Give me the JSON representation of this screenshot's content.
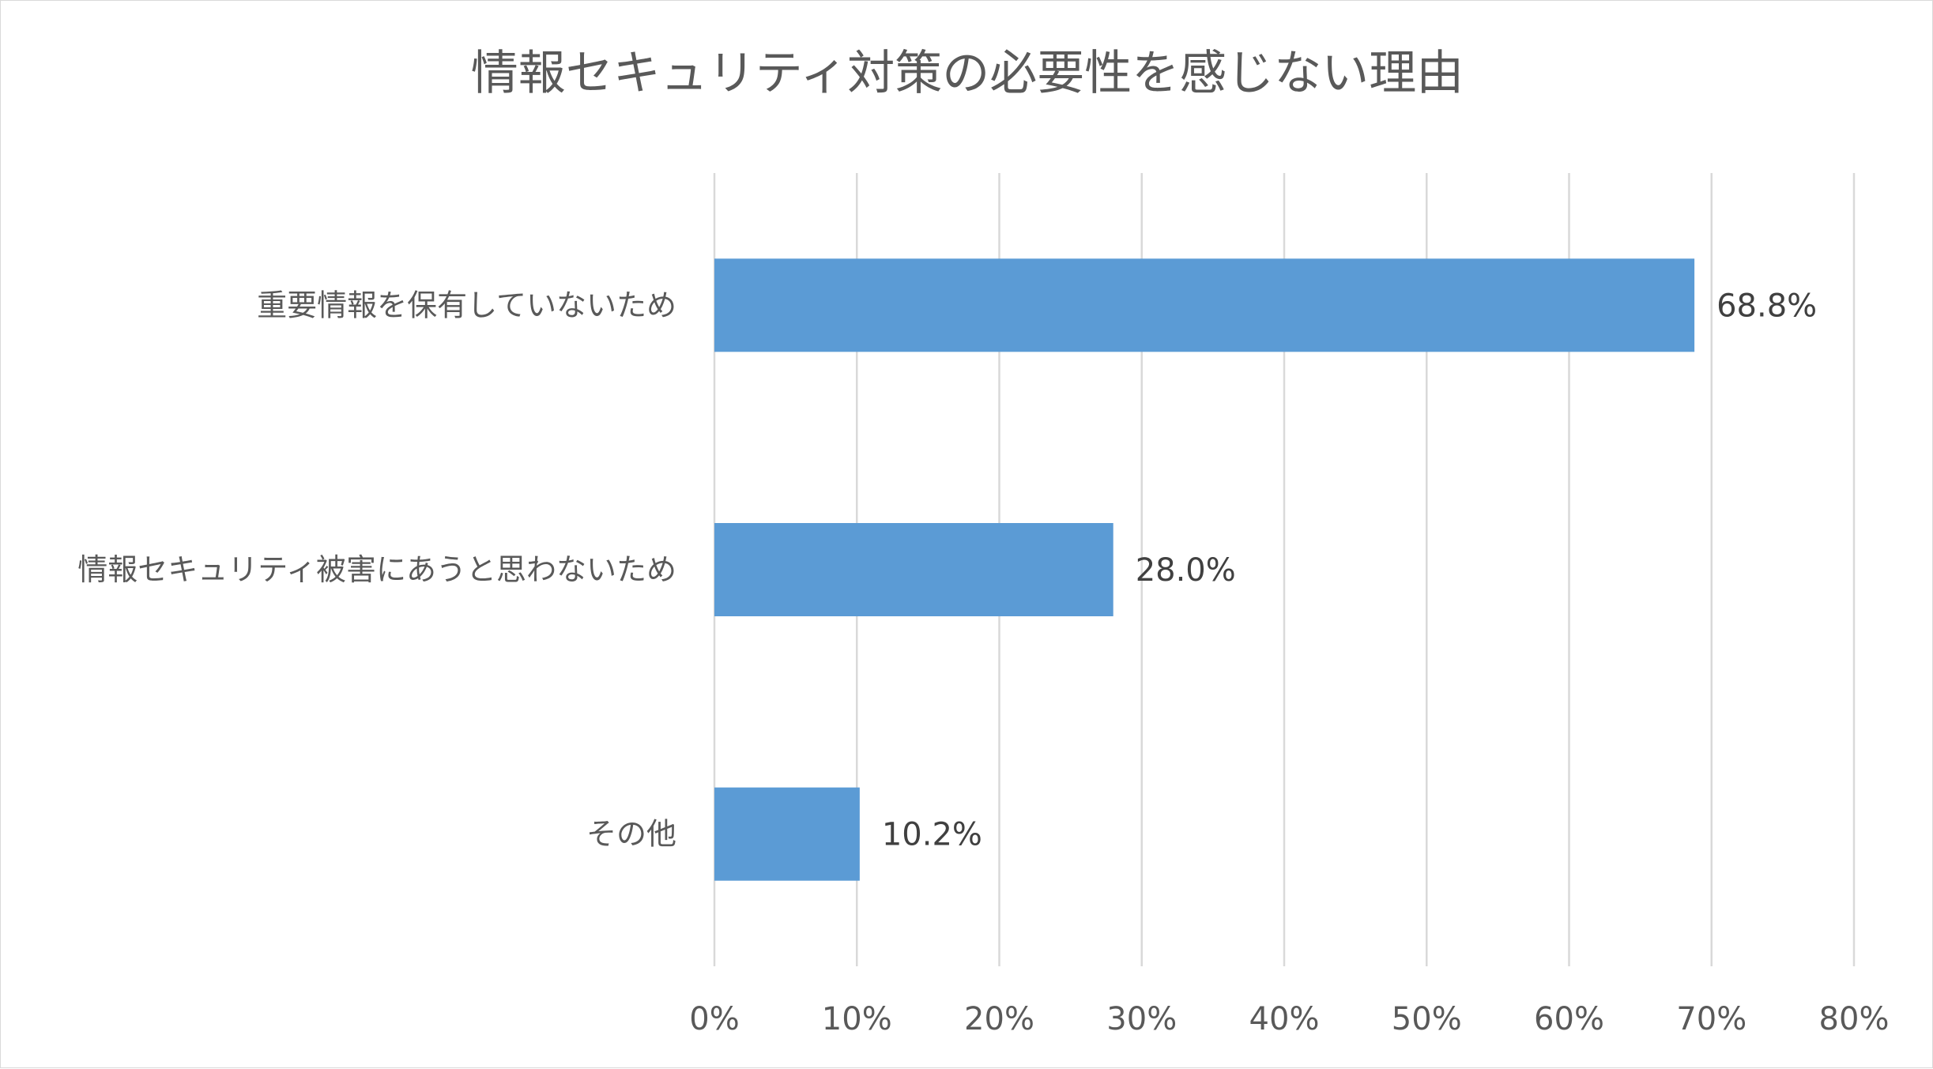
{
  "chart_data": {
    "type": "bar",
    "orientation": "horizontal",
    "title": "情報セキュリティ対策の必要性を感じない理由",
    "categories": [
      "重要情報を保有していないため",
      "情報セキュリティ被害にあうと思わないため",
      "その他"
    ],
    "values": [
      68.8,
      28.0,
      10.2
    ],
    "data_labels": [
      "68.8%",
      "28.0%",
      "10.2%"
    ],
    "xlim": [
      0,
      80
    ],
    "x_ticks": [
      0,
      10,
      20,
      30,
      40,
      50,
      60,
      70,
      80
    ],
    "x_tick_labels": [
      "0%",
      "10%",
      "20%",
      "30%",
      "40%",
      "50%",
      "60%",
      "70%",
      "80%"
    ],
    "grid": true,
    "legend": "none",
    "colors": {
      "bar": "#5b9bd5",
      "grid": "#d9d9d9",
      "text": "#595959"
    }
  }
}
